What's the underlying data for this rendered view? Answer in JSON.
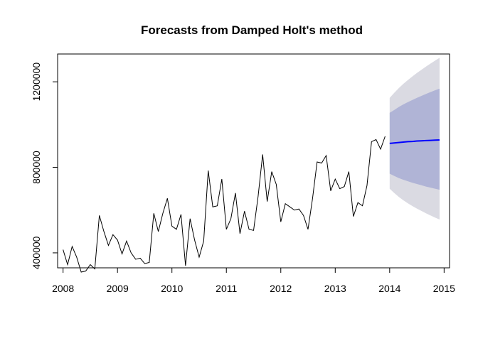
{
  "chart_data": {
    "type": "line",
    "title": "Forecasts from Damped Holt's method",
    "xlabel": "",
    "ylabel": "",
    "xlim": [
      2007.9,
      2015.1
    ],
    "ylim": [
      330000,
      1330000
    ],
    "x_ticks": [
      2008,
      2009,
      2010,
      2011,
      2012,
      2013,
      2014,
      2015
    ],
    "y_ticks": [
      400000,
      800000,
      1200000
    ],
    "y_tick_labels": [
      "400000",
      "800000",
      "1200000"
    ],
    "grid": false,
    "legend": false,
    "colors": {
      "observed": "#000000",
      "forecast": "#0000ff",
      "interval_80": "#b0b4d6",
      "interval_95": "#dadae2"
    },
    "observed": {
      "start": 2008,
      "frequency": 12,
      "values": [
        415000,
        345000,
        430000,
        380000,
        310000,
        315000,
        345000,
        325000,
        575000,
        500000,
        435000,
        485000,
        460000,
        395000,
        455000,
        400000,
        370000,
        375000,
        350000,
        355000,
        585000,
        500000,
        585000,
        655000,
        525000,
        510000,
        580000,
        340000,
        560000,
        460000,
        380000,
        455000,
        785000,
        615000,
        620000,
        745000,
        510000,
        560000,
        680000,
        490000,
        595000,
        510000,
        505000,
        665000,
        860000,
        640000,
        780000,
        720000,
        545000,
        630000,
        615000,
        600000,
        605000,
        575000,
        510000,
        655000,
        825000,
        820000,
        855000,
        690000,
        745000,
        700000,
        710000,
        780000,
        570000,
        635000,
        620000,
        715000,
        920000,
        930000,
        885000,
        945000
      ]
    },
    "forecast": {
      "start": 2014,
      "frequency": 12,
      "mean": [
        912000,
        914000,
        916000,
        918000,
        920000,
        921000,
        923000,
        924000,
        925000,
        926000,
        927000,
        928000
      ],
      "lo80": [
        770000,
        760000,
        750000,
        742000,
        735000,
        728000,
        722000,
        716000,
        710000,
        705000,
        700000,
        695000
      ],
      "hi80": [
        1055000,
        1068000,
        1082000,
        1094000,
        1105000,
        1115000,
        1125000,
        1134000,
        1143000,
        1152000,
        1160000,
        1168000
      ],
      "lo95": [
        700000,
        680000,
        662000,
        646000,
        632000,
        619000,
        607000,
        596000,
        585000,
        575000,
        565000,
        556000
      ],
      "hi95": [
        1125000,
        1148000,
        1170000,
        1190000,
        1208000,
        1225000,
        1241000,
        1256000,
        1271000,
        1285000,
        1299000,
        1312000
      ]
    }
  }
}
